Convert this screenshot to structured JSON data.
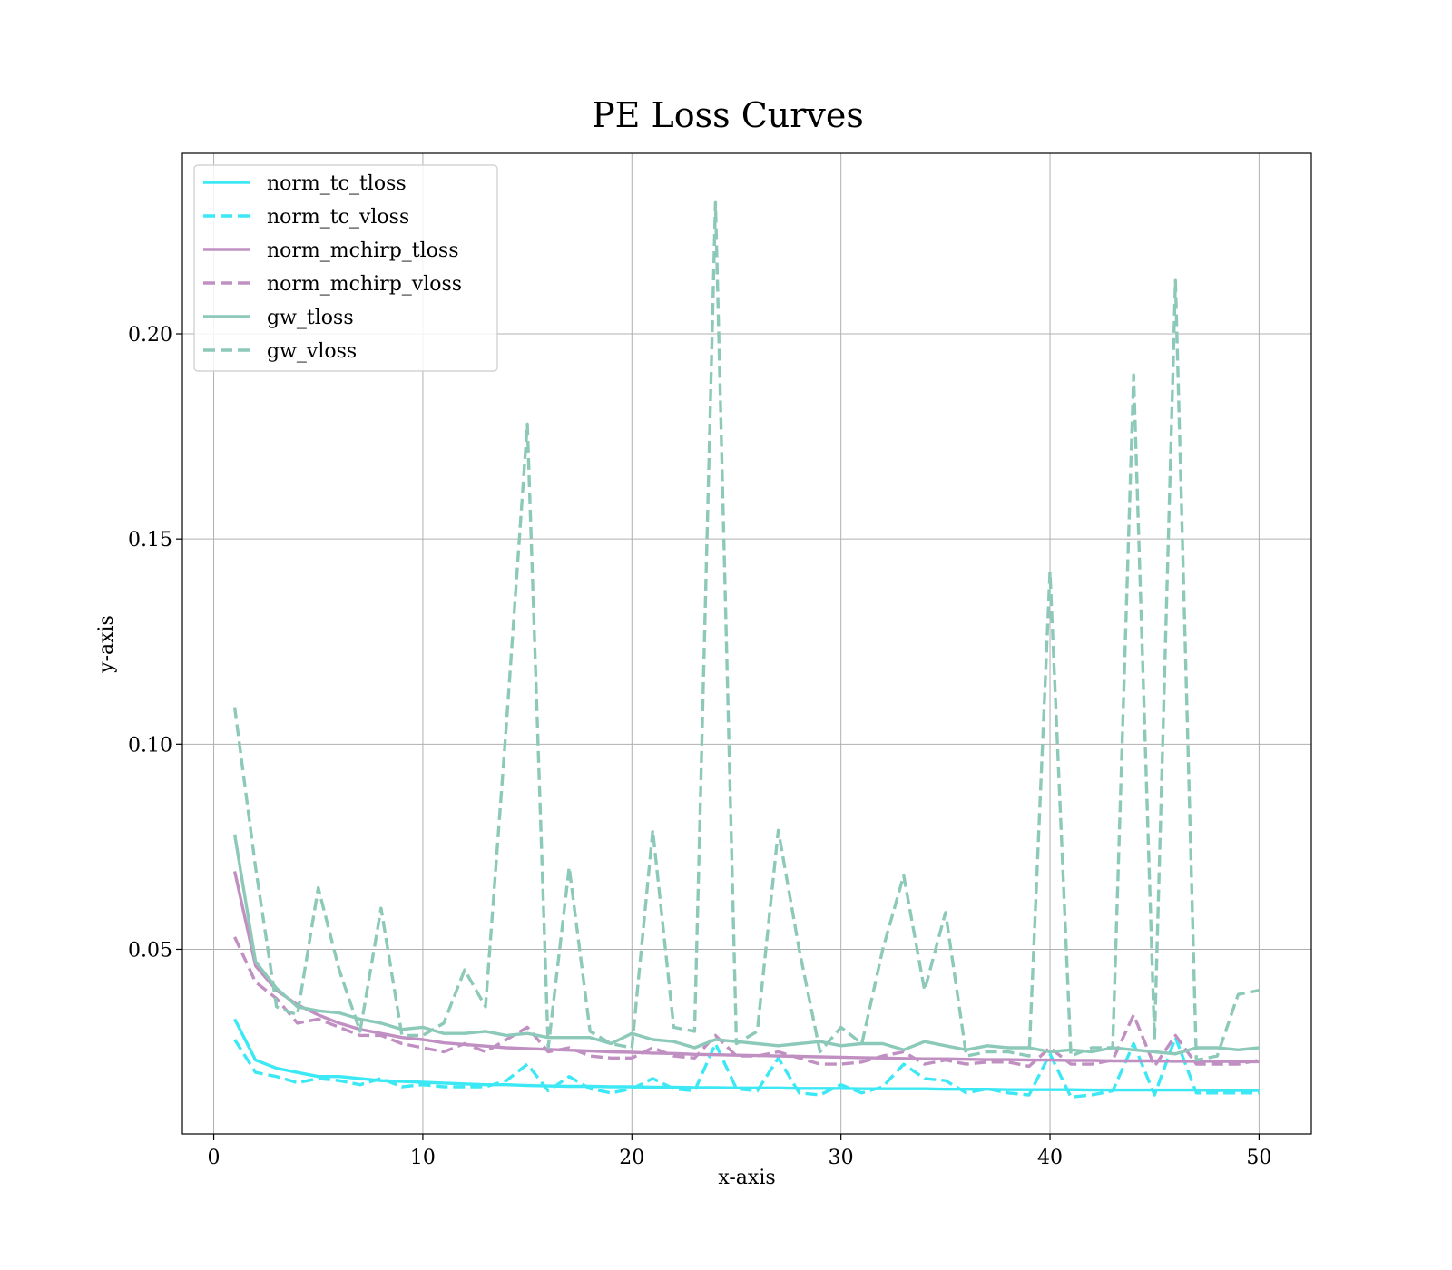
{
  "chart_data": {
    "type": "line",
    "title": "PE Loss Curves",
    "xlabel": "x-axis",
    "ylabel": "y-axis",
    "xlim": [
      -1.5,
      52.5
    ],
    "ylim": [
      0.005,
      0.244
    ],
    "xticks": [
      0,
      10,
      20,
      30,
      40,
      50
    ],
    "xtick_labels": [
      "0",
      "10",
      "20",
      "30",
      "40",
      "50"
    ],
    "yticks": [
      0.05,
      0.1,
      0.15,
      0.2
    ],
    "ytick_labels": [
      "0.05",
      "0.10",
      "0.15",
      "0.20"
    ],
    "grid": true,
    "legend_position": "top-left",
    "x": [
      1,
      2,
      3,
      4,
      5,
      6,
      7,
      8,
      9,
      10,
      11,
      12,
      13,
      14,
      15,
      16,
      17,
      18,
      19,
      20,
      21,
      22,
      23,
      24,
      25,
      26,
      27,
      28,
      29,
      30,
      31,
      32,
      33,
      34,
      35,
      36,
      37,
      38,
      39,
      40,
      41,
      42,
      43,
      44,
      45,
      46,
      47,
      48,
      49,
      50
    ],
    "series": [
      {
        "name": "norm_tc_tloss",
        "color": "#3de8f5",
        "dash": "solid",
        "values": [
          0.033,
          0.023,
          0.021,
          0.02,
          0.019,
          0.019,
          0.0185,
          0.018,
          0.0178,
          0.0176,
          0.0174,
          0.0172,
          0.017,
          0.017,
          0.0168,
          0.0167,
          0.0166,
          0.0166,
          0.0165,
          0.0165,
          0.0164,
          0.0164,
          0.0163,
          0.0163,
          0.0162,
          0.0162,
          0.0162,
          0.0161,
          0.0161,
          0.0161,
          0.016,
          0.016,
          0.016,
          0.016,
          0.0159,
          0.0159,
          0.0159,
          0.0158,
          0.0158,
          0.0158,
          0.0158,
          0.0157,
          0.0157,
          0.0157,
          0.0157,
          0.0157,
          0.0157,
          0.0156,
          0.0156,
          0.0156
        ]
      },
      {
        "name": "norm_tc_vloss",
        "color": "#3de8f5",
        "dash": "dashed",
        "values": [
          0.028,
          0.02,
          0.019,
          0.0175,
          0.0185,
          0.018,
          0.017,
          0.0185,
          0.0165,
          0.017,
          0.0165,
          0.0165,
          0.0165,
          0.018,
          0.022,
          0.0155,
          0.019,
          0.016,
          0.015,
          0.016,
          0.0185,
          0.016,
          0.0155,
          0.027,
          0.016,
          0.0155,
          0.0235,
          0.015,
          0.0145,
          0.017,
          0.015,
          0.0165,
          0.022,
          0.0185,
          0.018,
          0.015,
          0.016,
          0.015,
          0.0145,
          0.0245,
          0.014,
          0.0145,
          0.0155,
          0.027,
          0.0145,
          0.0285,
          0.015,
          0.015,
          0.015,
          0.015
        ]
      },
      {
        "name": "norm_mchirp_tloss",
        "color": "#c190c2",
        "dash": "solid",
        "values": [
          0.069,
          0.046,
          0.04,
          0.0365,
          0.034,
          0.032,
          0.0305,
          0.0295,
          0.0285,
          0.028,
          0.0272,
          0.0268,
          0.0264,
          0.026,
          0.0258,
          0.0256,
          0.0254,
          0.0252,
          0.025,
          0.0249,
          0.0247,
          0.0246,
          0.0244,
          0.0243,
          0.0242,
          0.0241,
          0.024,
          0.0239,
          0.0238,
          0.0237,
          0.0236,
          0.0235,
          0.0234,
          0.0233,
          0.0233,
          0.0232,
          0.0231,
          0.0231,
          0.023,
          0.023,
          0.0229,
          0.0229,
          0.0228,
          0.0228,
          0.0228,
          0.0227,
          0.0227,
          0.0227,
          0.0226,
          0.0226
        ]
      },
      {
        "name": "norm_mchirp_vloss",
        "color": "#c190c2",
        "dash": "dashed",
        "values": [
          0.053,
          0.042,
          0.038,
          0.032,
          0.033,
          0.031,
          0.029,
          0.029,
          0.027,
          0.026,
          0.025,
          0.027,
          0.025,
          0.028,
          0.031,
          0.025,
          0.026,
          0.024,
          0.0235,
          0.0235,
          0.026,
          0.024,
          0.0235,
          0.029,
          0.024,
          0.024,
          0.025,
          0.0235,
          0.022,
          0.022,
          0.0225,
          0.024,
          0.025,
          0.022,
          0.023,
          0.022,
          0.0225,
          0.0225,
          0.0215,
          0.026,
          0.022,
          0.022,
          0.023,
          0.034,
          0.0215,
          0.029,
          0.022,
          0.022,
          0.022,
          0.023
        ]
      },
      {
        "name": "gw_tloss",
        "color": "#8cc9b9",
        "dash": "solid",
        "values": [
          0.078,
          0.047,
          0.0405,
          0.036,
          0.035,
          0.0345,
          0.033,
          0.032,
          0.0305,
          0.031,
          0.0295,
          0.0295,
          0.03,
          0.029,
          0.0295,
          0.0285,
          0.0285,
          0.0285,
          0.027,
          0.0295,
          0.028,
          0.0275,
          0.026,
          0.028,
          0.0275,
          0.027,
          0.0265,
          0.027,
          0.0275,
          0.0265,
          0.027,
          0.027,
          0.0255,
          0.0275,
          0.0265,
          0.0255,
          0.0265,
          0.026,
          0.026,
          0.025,
          0.0255,
          0.025,
          0.026,
          0.0255,
          0.025,
          0.0245,
          0.026,
          0.026,
          0.0255,
          0.026
        ]
      },
      {
        "name": "gw_vloss",
        "color": "#8cc9b9",
        "dash": "dashed",
        "values": [
          0.109,
          0.07,
          0.036,
          0.034,
          0.065,
          0.045,
          0.03,
          0.06,
          0.029,
          0.029,
          0.032,
          0.045,
          0.036,
          0.105,
          0.178,
          0.026,
          0.07,
          0.03,
          0.027,
          0.026,
          0.079,
          0.031,
          0.03,
          0.232,
          0.027,
          0.03,
          0.079,
          0.05,
          0.025,
          0.031,
          0.027,
          0.05,
          0.068,
          0.04,
          0.059,
          0.024,
          0.025,
          0.025,
          0.024,
          0.142,
          0.024,
          0.026,
          0.026,
          0.19,
          0.028,
          0.213,
          0.023,
          0.024,
          0.039,
          0.04
        ]
      }
    ]
  }
}
